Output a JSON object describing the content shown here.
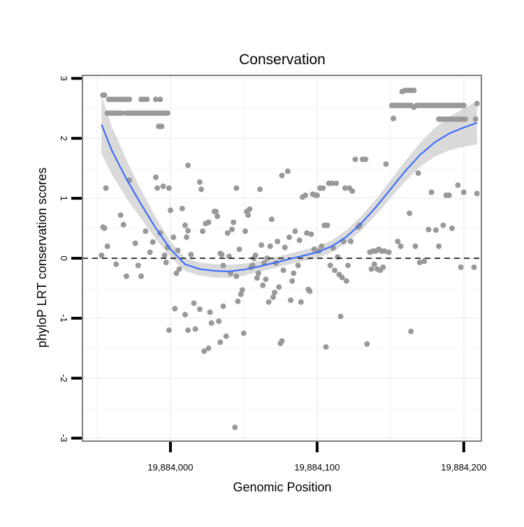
{
  "chart_data": {
    "type": "scatter",
    "title": "Conservation",
    "xlabel": "Genomic Position",
    "ylabel": "phyloP LRT conservation scores",
    "xlim": [
      19883940,
      19884212
    ],
    "ylim": [
      -3.05,
      3.05
    ],
    "x_ticks": [
      {
        "value": 19884000,
        "label": "19,884,000"
      },
      {
        "value": 19884100,
        "label": "19,884,100"
      },
      {
        "value": 19884200,
        "label": "19,884,200"
      }
    ],
    "y_ticks": [
      {
        "value": -3,
        "label": "-3"
      },
      {
        "value": -2,
        "label": "-2"
      },
      {
        "value": -1,
        "label": "-1"
      },
      {
        "value": 0,
        "label": "0"
      },
      {
        "value": 1,
        "label": "1"
      },
      {
        "value": 2,
        "label": "2"
      },
      {
        "value": 3,
        "label": "3"
      }
    ],
    "grid": true,
    "reference_line": {
      "y": 0,
      "style": "dashed"
    },
    "colors": {
      "points": "#999999",
      "smooth_line": "#3366ff",
      "confidence_band": "#d3d3d3",
      "panel_border": "#7f7f7f",
      "grid": "#f2f2f2"
    },
    "points": [
      [
        19883954,
        2.72
      ],
      [
        19883955,
        2.72
      ],
      [
        19883958,
        2.65
      ],
      [
        19883960,
        2.65
      ],
      [
        19883962,
        2.65
      ],
      [
        19883964,
        2.65
      ],
      [
        19883966,
        2.65
      ],
      [
        19883968,
        2.65
      ],
      [
        19883970,
        2.65
      ],
      [
        19883972,
        2.65
      ],
      [
        19883980,
        2.65
      ],
      [
        19883982,
        2.65
      ],
      [
        19883984,
        2.65
      ],
      [
        19883990,
        2.65
      ],
      [
        19883993,
        2.65
      ],
      [
        19883957,
        2.42
      ],
      [
        19883959,
        2.42
      ],
      [
        19883961,
        2.42
      ],
      [
        19883963,
        2.42
      ],
      [
        19883965,
        2.42
      ],
      [
        19883967,
        2.42
      ],
      [
        19883970,
        2.42
      ],
      [
        19883972,
        2.42
      ],
      [
        19883974,
        2.42
      ],
      [
        19883976,
        2.42
      ],
      [
        19883978,
        2.42
      ],
      [
        19883980,
        2.42
      ],
      [
        19883982,
        2.42
      ],
      [
        19883984,
        2.42
      ],
      [
        19883986,
        2.42
      ],
      [
        19883988,
        2.42
      ],
      [
        19883990,
        2.42
      ],
      [
        19883992,
        2.42
      ],
      [
        19883994,
        2.42
      ],
      [
        19883996,
        2.42
      ],
      [
        19883998,
        2.42
      ],
      [
        19883992,
        2.2
      ],
      [
        19883994,
        2.2
      ],
      [
        19883954,
        0.52
      ],
      [
        19883955,
        0.5
      ],
      [
        19883956,
        1.17
      ],
      [
        19883957,
        0.2
      ],
      [
        19883953,
        0.05
      ],
      [
        19883963,
        -0.1
      ],
      [
        19883966,
        0.72
      ],
      [
        19883968,
        0.56
      ],
      [
        19883970,
        -0.3
      ],
      [
        19883972,
        1.3
      ],
      [
        19883976,
        0.25
      ],
      [
        19883978,
        -0.12
      ],
      [
        19883980,
        -0.3
      ],
      [
        19883983,
        0.45
      ],
      [
        19883986,
        0.1
      ],
      [
        19883988,
        0.27
      ],
      [
        19883990,
        1.35
      ],
      [
        19883991,
        1.17
      ],
      [
        19883993,
        0.42
      ],
      [
        19883995,
        1.2
      ],
      [
        19883998,
        0.18
      ],
      [
        19884000,
        0.8
      ],
      [
        19883999,
        1.17
      ],
      [
        19883996,
        0.05
      ],
      [
        19883997,
        -0.07
      ],
      [
        19884002,
        0.35
      ],
      [
        19884004,
        -0.25
      ],
      [
        19884005,
        0.13
      ],
      [
        19884006,
        -0.18
      ],
      [
        19884003,
        -0.84
      ],
      [
        19883999,
        -1.2
      ],
      [
        19884008,
        0.83
      ],
      [
        19884010,
        0.55
      ],
      [
        19884011,
        0.35
      ],
      [
        19884012,
        0.46
      ],
      [
        19884012,
        -1.2
      ],
      [
        19884014,
        0.06
      ],
      [
        19884010,
        -0.94
      ],
      [
        19884016,
        -0.75
      ],
      [
        19884017,
        -1.18
      ],
      [
        19884020,
        -0.85
      ],
      [
        19884020,
        1.27
      ],
      [
        19884021,
        1.15
      ],
      [
        19884022,
        0.45
      ],
      [
        19884023,
        -1.55
      ],
      [
        19884024,
        0.58
      ],
      [
        19884026,
        0.6
      ],
      [
        19884012,
        1.55
      ],
      [
        19884026,
        -1.5
      ],
      [
        19884027,
        -0.9
      ],
      [
        19884028,
        -1.08
      ],
      [
        19884030,
        0.78
      ],
      [
        19884031,
        0.78
      ],
      [
        19884032,
        0.7
      ],
      [
        19884033,
        -1.05
      ],
      [
        19884034,
        -1.4
      ],
      [
        19884034,
        0.08
      ],
      [
        19884035,
        0.06
      ],
      [
        19884036,
        -0.12
      ],
      [
        19884036,
        -0.8
      ],
      [
        19884038,
        -1.3
      ],
      [
        19884039,
        0.42
      ],
      [
        19884040,
        0.03
      ],
      [
        19884041,
        -0.25
      ],
      [
        19884042,
        0.48
      ],
      [
        19884043,
        0.6
      ],
      [
        19884044,
        -2.82
      ],
      [
        19884045,
        1.17
      ],
      [
        19884045,
        -0.3
      ],
      [
        19884046,
        -0.72
      ],
      [
        19884047,
        0.15
      ],
      [
        19884048,
        -0.6
      ],
      [
        19884049,
        -0.53
      ],
      [
        19884050,
        -1.25
      ],
      [
        19884051,
        0.45
      ],
      [
        19884052,
        0.78
      ],
      [
        19884053,
        0.72
      ],
      [
        19884054,
        0.82
      ],
      [
        19884055,
        -0.15
      ],
      [
        19884056,
        -0.12
      ],
      [
        19884057,
        0.0
      ],
      [
        19884058,
        0.05
      ],
      [
        19884059,
        -0.33
      ],
      [
        19884060,
        -0.25
      ],
      [
        19884061,
        1.15
      ],
      [
        19884062,
        0.22
      ],
      [
        19884063,
        -0.45
      ],
      [
        19884064,
        -0.08
      ],
      [
        19884065,
        -0.35
      ],
      [
        19884066,
        0.0
      ],
      [
        19884067,
        -0.73
      ],
      [
        19884068,
        0.2
      ],
      [
        19884069,
        0.65
      ],
      [
        19884070,
        -0.65
      ],
      [
        19884071,
        -0.57
      ],
      [
        19884072,
        -0.08
      ],
      [
        19884073,
        0.28
      ],
      [
        19884074,
        -0.48
      ],
      [
        19884075,
        -1.42
      ],
      [
        19884076,
        -1.38
      ],
      [
        19884076,
        1.38
      ],
      [
        19884077,
        -0.2
      ],
      [
        19884078,
        0.18
      ],
      [
        19884080,
        1.45
      ],
      [
        19884081,
        0.35
      ],
      [
        19884082,
        -0.7
      ],
      [
        19884083,
        -0.38
      ],
      [
        19884084,
        -0.25
      ],
      [
        19884085,
        0.45
      ],
      [
        19884087,
        -0.12
      ],
      [
        19884088,
        0.3
      ],
      [
        19884089,
        -0.73
      ],
      [
        19884090,
        1.02
      ],
      [
        19884092,
        1.05
      ],
      [
        19884093,
        0.42
      ],
      [
        19884094,
        -0.52
      ],
      [
        19884095,
        -0.55
      ],
      [
        19884096,
        0.4
      ],
      [
        19884097,
        1.07
      ],
      [
        19884098,
        0.15
      ],
      [
        19884099,
        1.05
      ],
      [
        19884100,
        1.05
      ],
      [
        19884101,
        0.12
      ],
      [
        19884102,
        1.17
      ],
      [
        19884103,
        0.2
      ],
      [
        19884104,
        1.17
      ],
      [
        19884105,
        0.55
      ],
      [
        19884106,
        -1.48
      ],
      [
        19884107,
        0.55
      ],
      [
        19884108,
        1.25
      ],
      [
        19884109,
        -0.12
      ],
      [
        19884110,
        1.25
      ],
      [
        19884111,
        0.17
      ],
      [
        19884112,
        -0.2
      ],
      [
        19884113,
        1.25
      ],
      [
        19884114,
        0.02
      ],
      [
        19884115,
        -0.27
      ],
      [
        19884116,
        -0.97
      ],
      [
        19884117,
        -0.32
      ],
      [
        19884118,
        0.28
      ],
      [
        19884119,
        1.17
      ],
      [
        19884120,
        -0.38
      ],
      [
        19884121,
        -0.12
      ],
      [
        19884122,
        1.17
      ],
      [
        19884123,
        0.28
      ],
      [
        19884124,
        1.12
      ],
      [
        19884126,
        1.65
      ],
      [
        19884128,
        0.52
      ],
      [
        19884129,
        0.55
      ],
      [
        19884131,
        1.65
      ],
      [
        19884133,
        1.65
      ],
      [
        19884134,
        -1.43
      ],
      [
        19884136,
        0.1
      ],
      [
        19884137,
        -0.18
      ],
      [
        19884138,
        0.12
      ],
      [
        19884139,
        -0.1
      ],
      [
        19884140,
        0.12
      ],
      [
        19884141,
        -0.18
      ],
      [
        19884142,
        0.15
      ],
      [
        19884143,
        -0.2
      ],
      [
        19884144,
        0.12
      ],
      [
        19884145,
        -0.15
      ],
      [
        19884146,
        0.12
      ],
      [
        19884147,
        1.57
      ],
      [
        19884149,
        0.1
      ],
      [
        19884151,
        2.55
      ],
      [
        19884152,
        2.33
      ],
      [
        19884155,
        0.28
      ],
      [
        19884157,
        0.2
      ],
      [
        19884158,
        2.78
      ],
      [
        19884163,
        0.75
      ],
      [
        19884164,
        -1.22
      ],
      [
        19884167,
        0.2
      ],
      [
        19884169,
        1.42
      ],
      [
        19884170,
        -0.07
      ],
      [
        19884173,
        -0.05
      ],
      [
        19884176,
        0.48
      ],
      [
        19884178,
        1.1
      ],
      [
        19884181,
        0.47
      ],
      [
        19884183,
        0.2
      ],
      [
        19884186,
        0.55
      ],
      [
        19884188,
        1.05
      ],
      [
        19884190,
        1.05
      ],
      [
        19884192,
        0.5
      ],
      [
        19884196,
        1.22
      ],
      [
        19884198,
        -0.15
      ],
      [
        19884200,
        1.1
      ],
      [
        19884152,
        2.55
      ],
      [
        19884154,
        2.55
      ],
      [
        19884156,
        2.55
      ],
      [
        19884158,
        2.55
      ],
      [
        19884160,
        2.55
      ],
      [
        19884162,
        2.55
      ],
      [
        19884164,
        2.55
      ],
      [
        19884166,
        2.52
      ],
      [
        19884168,
        2.55
      ],
      [
        19884170,
        2.55
      ],
      [
        19884172,
        2.55
      ],
      [
        19884174,
        2.55
      ],
      [
        19884176,
        2.55
      ],
      [
        19884178,
        2.55
      ],
      [
        19884180,
        2.55
      ],
      [
        19884182,
        2.55
      ],
      [
        19884184,
        2.55
      ],
      [
        19884186,
        2.55
      ],
      [
        19884188,
        2.55
      ],
      [
        19884190,
        2.55
      ],
      [
        19884192,
        2.55
      ],
      [
        19884194,
        2.55
      ],
      [
        19884196,
        2.55
      ],
      [
        19884198,
        2.55
      ],
      [
        19884200,
        2.55
      ],
      [
        19884183,
        2.32
      ],
      [
        19884185,
        2.32
      ],
      [
        19884187,
        2.32
      ],
      [
        19884189,
        2.32
      ],
      [
        19884191,
        2.32
      ],
      [
        19884193,
        2.32
      ],
      [
        19884195,
        2.32
      ],
      [
        19884197,
        2.32
      ],
      [
        19884199,
        2.32
      ],
      [
        19884201,
        2.32
      ],
      [
        19884160,
        2.8
      ],
      [
        19884162,
        2.8
      ],
      [
        19884164,
        2.8
      ],
      [
        19884166,
        2.8
      ],
      [
        19884209,
        2.58
      ],
      [
        19884208,
        2.32
      ],
      [
        19884207,
        -0.15
      ],
      [
        19884209,
        1.08
      ]
    ],
    "smooth": [
      [
        19883953,
        2.23
      ],
      [
        19883960,
        1.8
      ],
      [
        19883970,
        1.32
      ],
      [
        19883980,
        0.9
      ],
      [
        19883990,
        0.5
      ],
      [
        19884000,
        0.15
      ],
      [
        19884010,
        -0.1
      ],
      [
        19884020,
        -0.18
      ],
      [
        19884030,
        -0.21
      ],
      [
        19884040,
        -0.22
      ],
      [
        19884050,
        -0.19
      ],
      [
        19884060,
        -0.14
      ],
      [
        19884070,
        -0.08
      ],
      [
        19884080,
        -0.02
      ],
      [
        19884090,
        0.04
      ],
      [
        19884100,
        0.1
      ],
      [
        19884110,
        0.2
      ],
      [
        19884120,
        0.36
      ],
      [
        19884130,
        0.58
      ],
      [
        19884140,
        0.85
      ],
      [
        19884150,
        1.15
      ],
      [
        19884160,
        1.45
      ],
      [
        19884170,
        1.72
      ],
      [
        19884180,
        1.93
      ],
      [
        19884190,
        2.08
      ],
      [
        19884200,
        2.18
      ],
      [
        19884209,
        2.26
      ]
    ],
    "ci_half_width": [
      0.48,
      0.4,
      0.32,
      0.24,
      0.18,
      0.13,
      0.11,
      0.11,
      0.11,
      0.11,
      0.1,
      0.09,
      0.09,
      0.09,
      0.09,
      0.1,
      0.1,
      0.11,
      0.12,
      0.13,
      0.15,
      0.17,
      0.2,
      0.24,
      0.28,
      0.32,
      0.36
    ]
  }
}
